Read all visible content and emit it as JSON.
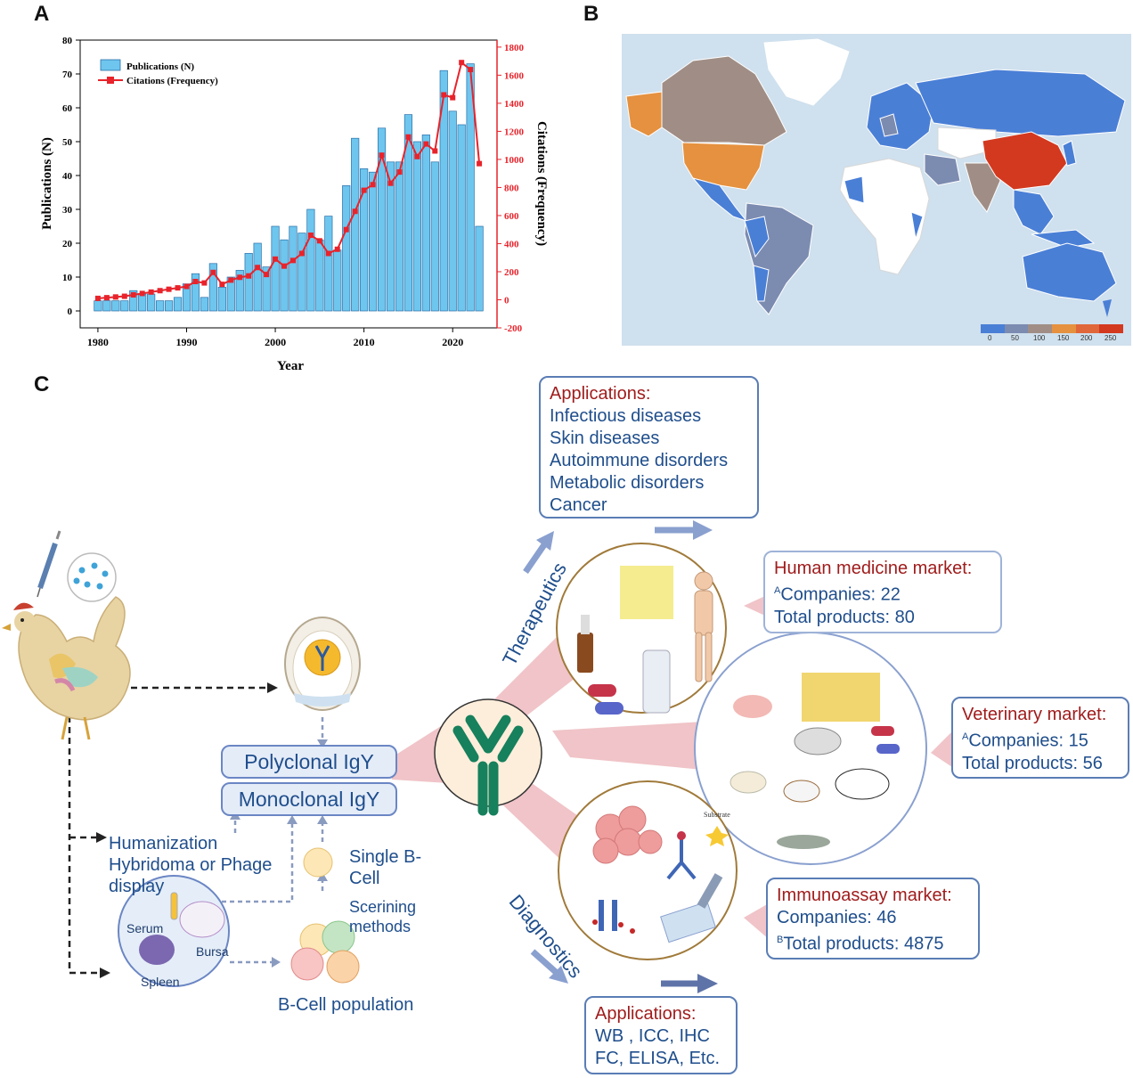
{
  "panels": {
    "a": "A",
    "b": "B",
    "c": "C"
  },
  "chart_data": {
    "type": "bar",
    "title": "",
    "xlabel": "Year",
    "ylabel": "Publications (N)",
    "y2label": "Citations (Frequency)",
    "xlim": [
      1978,
      2025
    ],
    "ylim": [
      -5,
      80
    ],
    "y2lim": [
      -200,
      1850
    ],
    "xticks": [
      "1980",
      "1990",
      "2000",
      "2010",
      "2020"
    ],
    "yticks": [
      "0",
      "10",
      "20",
      "30",
      "40",
      "50",
      "60",
      "70",
      "80"
    ],
    "y2ticks": [
      "-200",
      "0",
      "200",
      "400",
      "600",
      "800",
      "1000",
      "1200",
      "1400",
      "1600",
      "1800"
    ],
    "legend": [
      {
        "label": "Publications (N)",
        "color": "#6ec6ee"
      },
      {
        "label": "Citations (Frequency)",
        "color": "#e8232b"
      }
    ],
    "x": [
      1980,
      1981,
      1982,
      1983,
      1984,
      1985,
      1986,
      1987,
      1988,
      1989,
      1990,
      1991,
      1992,
      1993,
      1994,
      1995,
      1996,
      1997,
      1998,
      1999,
      2000,
      2001,
      2002,
      2003,
      2004,
      2005,
      2006,
      2007,
      2008,
      2009,
      2010,
      2011,
      2012,
      2013,
      2014,
      2015,
      2016,
      2017,
      2018,
      2019,
      2020,
      2021,
      2022,
      2023
    ],
    "series": [
      {
        "name": "Publications (N)",
        "values": [
          3,
          3,
          3,
          3,
          6,
          5,
          5,
          3,
          3,
          4,
          8,
          11,
          4,
          14,
          7,
          10,
          12,
          17,
          20,
          13,
          25,
          21,
          25,
          23,
          30,
          21,
          28,
          18,
          37,
          51,
          42,
          41,
          54,
          44,
          44,
          58,
          50,
          52,
          44,
          71,
          59,
          55,
          73,
          25
        ]
      },
      {
        "name": "Citations (Frequency)",
        "values": [
          10,
          15,
          20,
          25,
          35,
          45,
          55,
          65,
          75,
          85,
          95,
          130,
          120,
          195,
          110,
          140,
          160,
          170,
          230,
          180,
          290,
          240,
          280,
          330,
          460,
          420,
          330,
          360,
          500,
          630,
          780,
          820,
          1030,
          830,
          910,
          1160,
          1020,
          1110,
          1060,
          1460,
          1440,
          1690,
          1640,
          970
        ]
      }
    ]
  },
  "map": {
    "legend_ticks": [
      "0",
      "50",
      "100",
      "150",
      "200",
      "250"
    ],
    "legend_colors": [
      "#4a7fd6",
      "#7c8bb0",
      "#a08e86",
      "#e5913f",
      "#e0673a",
      "#d3391f"
    ]
  },
  "diagram": {
    "applications_top": {
      "title": "Applications:",
      "items": [
        "Infectious diseases",
        "Skin diseases",
        "Autoimmune disorders",
        "Metabolic disorders",
        "Cancer"
      ]
    },
    "human_market": {
      "title": "Human medicine market:",
      "sup1": "A",
      "line1": "Companies: 22",
      "line2": "Total products: 80"
    },
    "vet_market": {
      "title": "Veterinary market:",
      "sup1": "A",
      "line1": "Companies: 15",
      "line2": "Total products: 56"
    },
    "immuno_market": {
      "title": "Immunoassay market:",
      "line1": "Companies: 46",
      "sup2": "B",
      "line2": "Total products: 4875"
    },
    "applications_bottom": {
      "title": "Applications:",
      "line1": "WB , ICC, IHC",
      "line2": "FC,  ELISA, Etc."
    },
    "therapeutics": "Therapeutics",
    "diagnostics": "Diagnostics",
    "polyclonal": "Polyclonal IgY",
    "monoclonal": "Monoclonal IgY",
    "humanization": [
      "Humanization",
      "Hybridoma or Phage",
      "display"
    ],
    "single_b": [
      "Single B-",
      "Cell"
    ],
    "screening": [
      "Scerining",
      "methods"
    ],
    "b_population": "B-Cell population",
    "serum": "Serum",
    "bursa": "Bursa",
    "spleen": "Spleen",
    "substrate": "Substrate"
  }
}
